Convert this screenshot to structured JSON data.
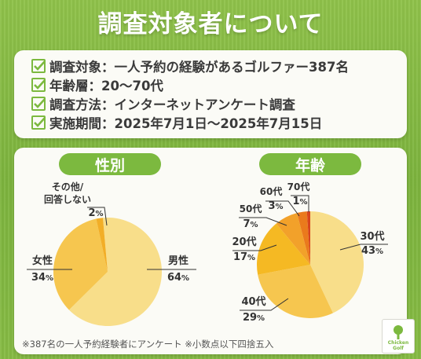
{
  "title": "調査対象者について",
  "info": [
    "調査対象：一人予約の経験があるゴルファー387名",
    "年齢層：20〜70代",
    "調査方法：インターネットアンケート調査",
    "実施期間：2025年7月1日〜2025年7月15日"
  ],
  "footnote": "※387名の一人予約経験者にアンケート ※小数点以下四捨五入",
  "logo_text": "Chicken Golf",
  "colors": {
    "green": "#7cb93f",
    "male": "#f8de8a",
    "female": "#f6c64f",
    "other": "#f2ae27",
    "20s": "#f5b923",
    "30s": "#f8de8a",
    "40s": "#f6c64f",
    "50s": "#f2a12a",
    "60s": "#ea7a1c",
    "70s": "#d8451c"
  },
  "chart_data": [
    {
      "type": "pie",
      "title": "性別",
      "slices": [
        {
          "label": "男性",
          "value": 64
        },
        {
          "label": "女性",
          "value": 34
        },
        {
          "label": "その他/回答しない",
          "value": 2
        }
      ],
      "unit": "%"
    },
    {
      "type": "pie",
      "title": "年齢",
      "slices": [
        {
          "label": "30代",
          "value": 43
        },
        {
          "label": "40代",
          "value": 29
        },
        {
          "label": "20代",
          "value": 17
        },
        {
          "label": "50代",
          "value": 7
        },
        {
          "label": "60代",
          "value": 3
        },
        {
          "label": "70代",
          "value": 1
        }
      ],
      "unit": "%"
    }
  ]
}
